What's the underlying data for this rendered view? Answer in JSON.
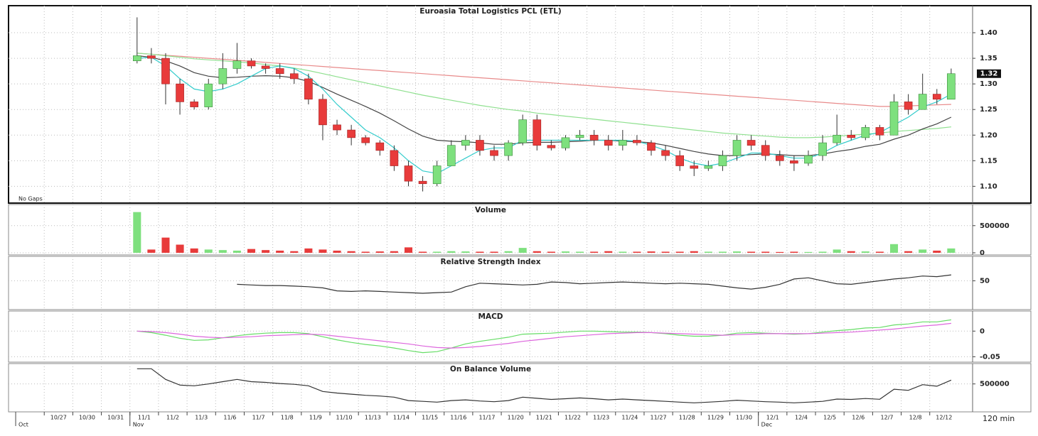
{
  "chart_data": [
    {
      "type": "candlestick",
      "title": "Euroasia Total Logistics PCL (ETL)",
      "gap_label": "No Gaps",
      "x": [
        0,
        1,
        2,
        3,
        4,
        5,
        6,
        7,
        8,
        9,
        10,
        11,
        12,
        13,
        14,
        15,
        16,
        17,
        18,
        19,
        20,
        21,
        22,
        23,
        24,
        25,
        26,
        27,
        28,
        29,
        30,
        31,
        32,
        33,
        34,
        35,
        36,
        37,
        38,
        39,
        40,
        41,
        42,
        43,
        44,
        45,
        46,
        47,
        48,
        49,
        50,
        51,
        52,
        53,
        54,
        55,
        56,
        57
      ],
      "xlim": [
        -9,
        58.5
      ],
      "open": [
        1.345,
        1.355,
        1.35,
        1.3,
        1.265,
        1.255,
        1.3,
        1.33,
        1.345,
        1.335,
        1.33,
        1.32,
        1.31,
        1.27,
        1.22,
        1.21,
        1.195,
        1.185,
        1.17,
        1.14,
        1.11,
        1.105,
        1.14,
        1.18,
        1.19,
        1.17,
        1.16,
        1.185,
        1.23,
        1.18,
        1.175,
        1.195,
        1.2,
        1.19,
        1.18,
        1.19,
        1.185,
        1.17,
        1.16,
        1.14,
        1.135,
        1.14,
        1.16,
        1.19,
        1.18,
        1.16,
        1.15,
        1.145,
        1.16,
        1.185,
        1.2,
        1.195,
        1.215,
        1.2,
        1.265,
        1.25,
        1.28,
        1.27
      ],
      "high": [
        1.43,
        1.37,
        1.36,
        1.31,
        1.27,
        1.31,
        1.36,
        1.38,
        1.35,
        1.34,
        1.34,
        1.33,
        1.32,
        1.28,
        1.23,
        1.22,
        1.2,
        1.19,
        1.18,
        1.15,
        1.12,
        1.15,
        1.19,
        1.2,
        1.2,
        1.18,
        1.19,
        1.24,
        1.24,
        1.19,
        1.2,
        1.21,
        1.21,
        1.2,
        1.21,
        1.2,
        1.19,
        1.18,
        1.17,
        1.15,
        1.15,
        1.17,
        1.2,
        1.2,
        1.19,
        1.17,
        1.16,
        1.17,
        1.2,
        1.24,
        1.21,
        1.22,
        1.22,
        1.28,
        1.28,
        1.32,
        1.29,
        1.33
      ],
      "low": [
        1.34,
        1.34,
        1.26,
        1.24,
        1.25,
        1.25,
        1.29,
        1.32,
        1.33,
        1.32,
        1.31,
        1.3,
        1.26,
        1.19,
        1.2,
        1.18,
        1.18,
        1.16,
        1.13,
        1.1,
        1.09,
        1.1,
        1.14,
        1.17,
        1.16,
        1.15,
        1.15,
        1.18,
        1.17,
        1.17,
        1.17,
        1.19,
        1.18,
        1.17,
        1.17,
        1.18,
        1.16,
        1.15,
        1.13,
        1.12,
        1.13,
        1.13,
        1.15,
        1.17,
        1.15,
        1.14,
        1.13,
        1.14,
        1.15,
        1.18,
        1.19,
        1.19,
        1.19,
        1.2,
        1.24,
        1.25,
        1.26,
        1.27
      ],
      "close": [
        1.355,
        1.35,
        1.3,
        1.265,
        1.255,
        1.3,
        1.33,
        1.345,
        1.335,
        1.33,
        1.32,
        1.31,
        1.27,
        1.22,
        1.21,
        1.195,
        1.185,
        1.17,
        1.14,
        1.11,
        1.105,
        1.14,
        1.18,
        1.19,
        1.17,
        1.16,
        1.185,
        1.23,
        1.18,
        1.175,
        1.195,
        1.2,
        1.19,
        1.18,
        1.19,
        1.185,
        1.17,
        1.16,
        1.14,
        1.135,
        1.14,
        1.16,
        1.19,
        1.18,
        1.16,
        1.15,
        1.145,
        1.16,
        1.185,
        1.2,
        1.195,
        1.215,
        1.2,
        1.265,
        1.25,
        1.28,
        1.27,
        1.32
      ],
      "up_color": "#7ee07e",
      "down_color": "#e83b3b",
      "overlays": [
        {
          "color": "#e88a8a",
          "values": [
            1.36,
            1.358,
            1.356,
            1.354,
            1.352,
            1.35,
            1.348,
            1.346,
            1.344,
            1.342,
            1.34,
            1.338,
            1.336,
            1.334,
            1.332,
            1.33,
            1.328,
            1.326,
            1.324,
            1.322,
            1.32,
            1.318,
            1.316,
            1.314,
            1.312,
            1.31,
            1.308,
            1.306,
            1.304,
            1.302,
            1.3,
            1.298,
            1.296,
            1.294,
            1.292,
            1.29,
            1.288,
            1.286,
            1.284,
            1.282,
            1.28,
            1.278,
            1.276,
            1.274,
            1.272,
            1.27,
            1.268,
            1.266,
            1.264,
            1.262,
            1.26,
            1.258,
            1.256,
            1.256,
            1.257,
            1.258,
            1.259,
            1.26
          ]
        },
        {
          "color": "#8fe08f",
          "values": [
            1.36,
            1.358,
            1.355,
            1.352,
            1.349,
            1.347,
            1.345,
            1.343,
            1.341,
            1.338,
            1.335,
            1.331,
            1.326,
            1.32,
            1.314,
            1.308,
            1.302,
            1.296,
            1.29,
            1.284,
            1.278,
            1.273,
            1.268,
            1.263,
            1.258,
            1.254,
            1.25,
            1.247,
            1.243,
            1.24,
            1.237,
            1.234,
            1.231,
            1.228,
            1.225,
            1.222,
            1.219,
            1.216,
            1.213,
            1.21,
            1.207,
            1.204,
            1.202,
            1.2,
            1.198,
            1.196,
            1.195,
            1.195,
            1.196,
            1.198,
            1.2,
            1.202,
            1.204,
            1.207,
            1.209,
            1.211,
            1.213,
            1.216
          ]
        },
        {
          "color": "#444444",
          "values": [
            1.355,
            1.352,
            1.345,
            1.335,
            1.322,
            1.315,
            1.312,
            1.313,
            1.315,
            1.316,
            1.315,
            1.312,
            1.305,
            1.293,
            1.28,
            1.268,
            1.256,
            1.243,
            1.228,
            1.212,
            1.198,
            1.19,
            1.188,
            1.187,
            1.185,
            1.182,
            1.182,
            1.185,
            1.186,
            1.186,
            1.187,
            1.188,
            1.19,
            1.19,
            1.188,
            1.187,
            1.185,
            1.18,
            1.174,
            1.168,
            1.163,
            1.16,
            1.16,
            1.162,
            1.163,
            1.162,
            1.16,
            1.16,
            1.163,
            1.168,
            1.172,
            1.178,
            1.182,
            1.192,
            1.2,
            1.212,
            1.222,
            1.235
          ]
        },
        {
          "color": "#33cccc",
          "values": [
            1.35,
            1.352,
            1.335,
            1.31,
            1.29,
            1.285,
            1.29,
            1.3,
            1.315,
            1.33,
            1.335,
            1.33,
            1.315,
            1.29,
            1.26,
            1.235,
            1.21,
            1.195,
            1.175,
            1.15,
            1.13,
            1.125,
            1.14,
            1.155,
            1.17,
            1.175,
            1.175,
            1.19,
            1.19,
            1.19,
            1.19,
            1.19,
            1.19,
            1.19,
            1.19,
            1.188,
            1.18,
            1.17,
            1.155,
            1.145,
            1.14,
            1.145,
            1.155,
            1.165,
            1.165,
            1.16,
            1.155,
            1.155,
            1.165,
            1.18,
            1.19,
            1.2,
            1.205,
            1.22,
            1.235,
            1.255,
            1.265,
            1.28
          ]
        }
      ],
      "last_price": 1.32,
      "ylim": [
        1.07,
        1.45
      ],
      "yticks": [
        {
          "value": 1.1,
          "label": "1.10"
        },
        1.15,
        {
          "value": 1.2,
          "label": "1.20"
        },
        1.25,
        {
          "value": 1.3,
          "label": "1.30"
        },
        1.35,
        {
          "value": 1.4,
          "label": "1.40"
        }
      ],
      "grid": true
    },
    {
      "type": "bar",
      "title": "Volume",
      "values": [
        750000,
        60000,
        280000,
        150000,
        80000,
        60000,
        50000,
        40000,
        70000,
        50000,
        40000,
        30000,
        80000,
        60000,
        40000,
        30000,
        20000,
        25000,
        30000,
        100000,
        20000,
        20000,
        30000,
        25000,
        20000,
        20000,
        30000,
        90000,
        30000,
        20000,
        25000,
        20000,
        20000,
        30000,
        20000,
        20000,
        25000,
        20000,
        20000,
        30000,
        20000,
        20000,
        25000,
        20000,
        20000,
        15000,
        20000,
        15000,
        20000,
        60000,
        30000,
        25000,
        20000,
        160000,
        30000,
        60000,
        40000,
        80000
      ],
      "ylim": [
        0,
        850000
      ],
      "yticks": [
        0,
        500000
      ],
      "grid": true
    },
    {
      "type": "line",
      "title": "Relative Strength Index",
      "series": [
        {
          "color": "#333333",
          "values": [
            null,
            null,
            null,
            null,
            null,
            null,
            null,
            44,
            43,
            42,
            42,
            41,
            40,
            38,
            33,
            32,
            33,
            32,
            31,
            30,
            29,
            30,
            31,
            40,
            46,
            45,
            44,
            43,
            44,
            48,
            47,
            45,
            46,
            47,
            48,
            47,
            46,
            45,
            46,
            45,
            44,
            41,
            38,
            36,
            39,
            44,
            53,
            55,
            50,
            45,
            44,
            47,
            50,
            53,
            55,
            58,
            57,
            60
          ]
        }
      ],
      "ylim": [
        5,
        90
      ],
      "yticks": [
        50
      ],
      "grid": true
    },
    {
      "type": "line",
      "title": "MACD",
      "series": [
        {
          "color": "#66dd66",
          "values": [
            0,
            -0.003,
            -0.008,
            -0.014,
            -0.018,
            -0.017,
            -0.013,
            -0.009,
            -0.006,
            -0.004,
            -0.003,
            -0.003,
            -0.005,
            -0.011,
            -0.017,
            -0.022,
            -0.026,
            -0.029,
            -0.033,
            -0.038,
            -0.042,
            -0.04,
            -0.033,
            -0.025,
            -0.02,
            -0.016,
            -0.012,
            -0.006,
            -0.005,
            -0.004,
            -0.002,
            0,
            0,
            -0.001,
            -0.002,
            -0.002,
            -0.003,
            -0.005,
            -0.008,
            -0.01,
            -0.01,
            -0.008,
            -0.004,
            -0.003,
            -0.004,
            -0.005,
            -0.006,
            -0.005,
            -0.002,
            0.001,
            0.003,
            0.006,
            0.007,
            0.012,
            0.014,
            0.018,
            0.018,
            0.022
          ]
        },
        {
          "color": "#dd66dd",
          "values": [
            0,
            -0.001,
            -0.003,
            -0.006,
            -0.01,
            -0.012,
            -0.013,
            -0.012,
            -0.011,
            -0.009,
            -0.008,
            -0.007,
            -0.006,
            -0.007,
            -0.01,
            -0.013,
            -0.016,
            -0.019,
            -0.022,
            -0.025,
            -0.029,
            -0.032,
            -0.033,
            -0.032,
            -0.03,
            -0.027,
            -0.024,
            -0.02,
            -0.017,
            -0.014,
            -0.011,
            -0.009,
            -0.007,
            -0.005,
            -0.004,
            -0.003,
            -0.003,
            -0.004,
            -0.005,
            -0.006,
            -0.007,
            -0.008,
            -0.007,
            -0.006,
            -0.005,
            -0.005,
            -0.005,
            -0.005,
            -0.004,
            -0.003,
            -0.002,
            0,
            0.002,
            0.004,
            0.007,
            0.01,
            0.012,
            0.015
          ]
        }
      ],
      "ylim": [
        -0.055,
        0.035
      ],
      "yticks": [
        -0.05,
        0
      ],
      "grid": true
    },
    {
      "type": "line",
      "title": "On Balance Volume",
      "interval_label": "120 min",
      "series": [
        {
          "color": "#333333",
          "values": [
            900000,
            900000,
            620000,
            470000,
            450000,
            500000,
            560000,
            620000,
            560000,
            540000,
            510000,
            490000,
            450000,
            300000,
            260000,
            230000,
            200000,
            180000,
            150000,
            60000,
            40000,
            20000,
            60000,
            80000,
            50000,
            30000,
            60000,
            150000,
            120000,
            90000,
            110000,
            130000,
            110000,
            80000,
            100000,
            80000,
            60000,
            40000,
            20000,
            0,
            20000,
            40000,
            70000,
            50000,
            30000,
            20000,
            0,
            20000,
            40000,
            100000,
            90000,
            115000,
            95000,
            360000,
            330000,
            480000,
            440000,
            600000
          ]
        }
      ],
      "ylim": [
        -200000,
        1000000
      ],
      "yticks": [
        500000
      ],
      "grid": true,
      "xticks": [
        {
          "value": -6.5,
          "label": "10/27"
        },
        {
          "value": -4.5,
          "label": "10/30"
        },
        {
          "value": -2.5,
          "label": "10/31"
        },
        {
          "value": -0.5,
          "label": "11/1"
        },
        {
          "value": 1.5,
          "label": "11/2"
        },
        {
          "value": 3.5,
          "label": "11/3"
        },
        {
          "value": 5.5,
          "label": "11/6"
        },
        {
          "value": 7.5,
          "label": "11/7"
        },
        {
          "value": 9.5,
          "label": "11/8"
        },
        {
          "value": 11.5,
          "label": "11/9"
        },
        {
          "value": 13.5,
          "label": "11/10"
        },
        {
          "value": 15.5,
          "label": "11/13"
        },
        {
          "value": 17.5,
          "label": "11/14"
        },
        {
          "value": 19.5,
          "label": "11/15"
        },
        {
          "value": 21.5,
          "label": "11/16"
        },
        {
          "value": 23.5,
          "label": "11/17"
        },
        {
          "value": 25.5,
          "label": "11/20"
        },
        {
          "value": 27.5,
          "label": "11/21"
        },
        {
          "value": 29.5,
          "label": "11/22"
        },
        {
          "value": 31.5,
          "label": "11/23"
        },
        {
          "value": 33.5,
          "label": "11/24"
        },
        {
          "value": 35.5,
          "label": "11/27"
        },
        {
          "value": 37.5,
          "label": "11/28"
        },
        {
          "value": 39.5,
          "label": "11/29"
        },
        {
          "value": 41.5,
          "label": "11/30"
        },
        {
          "value": 43.5,
          "label": "12/1"
        },
        {
          "value": 45.5,
          "label": "12/4"
        },
        {
          "value": 47.5,
          "label": "12/5"
        },
        {
          "value": 49.5,
          "label": "12/6"
        },
        {
          "value": 51.5,
          "label": "12/7"
        },
        {
          "value": 53.5,
          "label": "12/8"
        },
        {
          "value": 55.5,
          "label": "12/12"
        }
      ],
      "month_ticks": [
        {
          "value": -8.5,
          "label": "Oct"
        },
        {
          "value": -0.5,
          "label": "Nov"
        },
        {
          "value": 43.5,
          "label": "Dec"
        }
      ]
    }
  ]
}
